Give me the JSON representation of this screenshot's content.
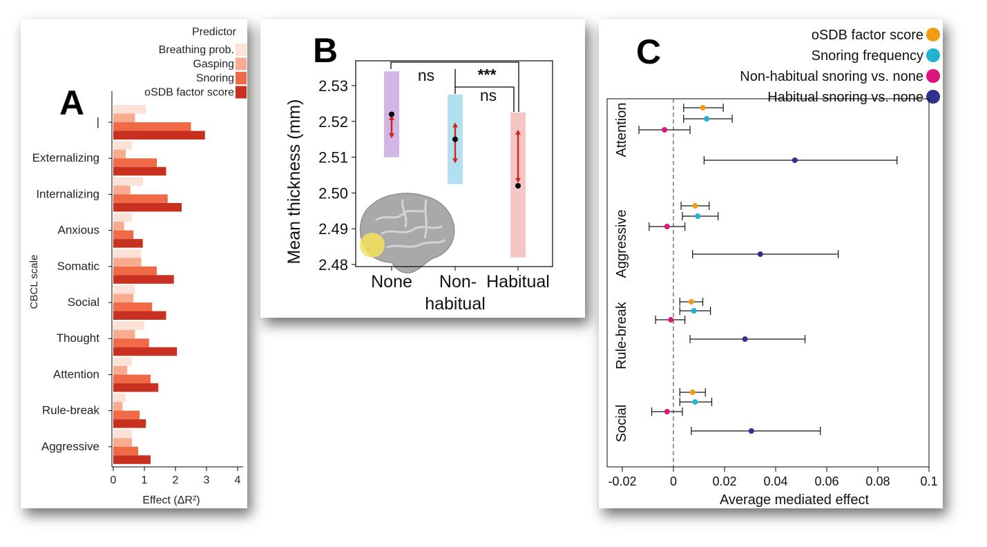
{
  "panel_a": {
    "letter": "A",
    "chart_data": {
      "type": "bar",
      "orientation": "horizontal",
      "legend_title": "Predictor",
      "categories": [
        "|",
        "Externalizing",
        "Internalizing",
        "Anxious",
        "Somatic",
        "Social",
        "Thought",
        "Attention",
        "Rule-break",
        "Aggressive"
      ],
      "series": [
        {
          "name": "Breathing prob.",
          "color": "#fce1d6",
          "values": [
            1.05,
            0.6,
            0.95,
            0.6,
            0.9,
            0.7,
            1.0,
            0.6,
            0.4,
            0.6
          ]
        },
        {
          "name": "Gasping",
          "color": "#f8ab8e",
          "values": [
            0.7,
            0.4,
            0.55,
            0.35,
            0.9,
            0.65,
            0.7,
            0.45,
            0.3,
            0.6
          ]
        },
        {
          "name": "Snoring",
          "color": "#f06a48",
          "values": [
            2.5,
            1.4,
            1.75,
            0.65,
            1.4,
            1.25,
            1.15,
            1.2,
            0.85,
            0.8
          ]
        },
        {
          "name": "oSDB factor score",
          "color": "#c8311f",
          "values": [
            2.95,
            1.7,
            2.2,
            0.95,
            1.95,
            1.7,
            2.05,
            1.45,
            1.05,
            1.2
          ]
        }
      ],
      "xlabel": "Effect (ΔR²)",
      "ylabel": "CBCL scale",
      "xticks": [
        "0",
        "1",
        "2",
        "3",
        "4"
      ],
      "xlim": [
        0,
        4
      ]
    }
  },
  "panel_b": {
    "letter": "B",
    "chart_data": {
      "type": "scatter",
      "ylabel": "Mean thickness (mm)",
      "ylim": [
        2.48,
        2.535
      ],
      "yticks": [
        "2.48",
        "2.49",
        "2.50",
        "2.51",
        "2.52",
        "2.53"
      ],
      "groups": [
        {
          "label1": "None",
          "label2": "",
          "mean": 2.522,
          "arrow_low": 2.5155,
          "arrow_high": 2.5215,
          "box_low": 2.51,
          "box_high": 2.534,
          "box_color": "#d2b7e6"
        },
        {
          "label1": "Non-",
          "label2": "habitual",
          "mean": 2.515,
          "arrow_low": 2.5085,
          "arrow_high": 2.5195,
          "box_low": 2.5025,
          "box_high": 2.5275,
          "box_color": "#b3e0ee"
        },
        {
          "label1": "Habitual",
          "label2": "",
          "mean": 2.502,
          "arrow_low": 2.503,
          "arrow_high": 2.5175,
          "box_low": 2.482,
          "box_high": 2.5225,
          "box_color": "#f6c6c4"
        }
      ],
      "comparisons": [
        {
          "pair": "None vs Non-habitual",
          "label": "ns"
        },
        {
          "pair": "None vs Habitual",
          "label": "***"
        },
        {
          "pair": "Non-habitual vs Habitual",
          "label": "ns"
        }
      ]
    }
  },
  "panel_c": {
    "letter": "C",
    "chart_data": {
      "type": "scatter",
      "subtype": "forest",
      "xlabel": "Average mediated effect",
      "xlim": [
        -0.02,
        0.1
      ],
      "xticks": [
        "-0.02",
        "0",
        "0.02",
        "0.04",
        "0.06",
        "0.08",
        "0.1"
      ],
      "legend": [
        {
          "name": "oSDB factor score",
          "color": "#f39c12"
        },
        {
          "name": "Snoring frequency",
          "color": "#1eb4d2"
        },
        {
          "name": "Non-habitual snoring vs. none",
          "color": "#e0147d"
        },
        {
          "name": "Habitual snoring vs. none",
          "color": "#32318f"
        }
      ],
      "groups": [
        {
          "name": "Attention",
          "points": [
            {
              "est": 0.0115,
              "lo": 0.004,
              "hi": 0.0195
            },
            {
              "est": 0.013,
              "lo": 0.004,
              "hi": 0.023
            },
            {
              "est": -0.0035,
              "lo": -0.0135,
              "hi": 0.0065
            },
            {
              "est": 0.0475,
              "lo": 0.012,
              "hi": 0.0875
            }
          ]
        },
        {
          "name": "Aggressive",
          "points": [
            {
              "est": 0.0085,
              "lo": 0.003,
              "hi": 0.014
            },
            {
              "est": 0.0095,
              "lo": 0.0035,
              "hi": 0.0175
            },
            {
              "est": -0.0025,
              "lo": -0.0095,
              "hi": 0.0045
            },
            {
              "est": 0.034,
              "lo": 0.0075,
              "hi": 0.0645
            }
          ]
        },
        {
          "name": "Rule-break",
          "points": [
            {
              "est": 0.007,
              "lo": 0.0025,
              "hi": 0.0115
            },
            {
              "est": 0.008,
              "lo": 0.0025,
              "hi": 0.0145
            },
            {
              "est": -0.001,
              "lo": -0.007,
              "hi": 0.0045
            },
            {
              "est": 0.028,
              "lo": 0.0065,
              "hi": 0.0515
            }
          ]
        },
        {
          "name": "Social",
          "points": [
            {
              "est": 0.0075,
              "lo": 0.0025,
              "hi": 0.0125
            },
            {
              "est": 0.0085,
              "lo": 0.0025,
              "hi": 0.015
            },
            {
              "est": -0.0025,
              "lo": -0.0085,
              "hi": 0.0035
            },
            {
              "est": 0.0305,
              "lo": 0.007,
              "hi": 0.0575
            }
          ]
        }
      ]
    }
  }
}
